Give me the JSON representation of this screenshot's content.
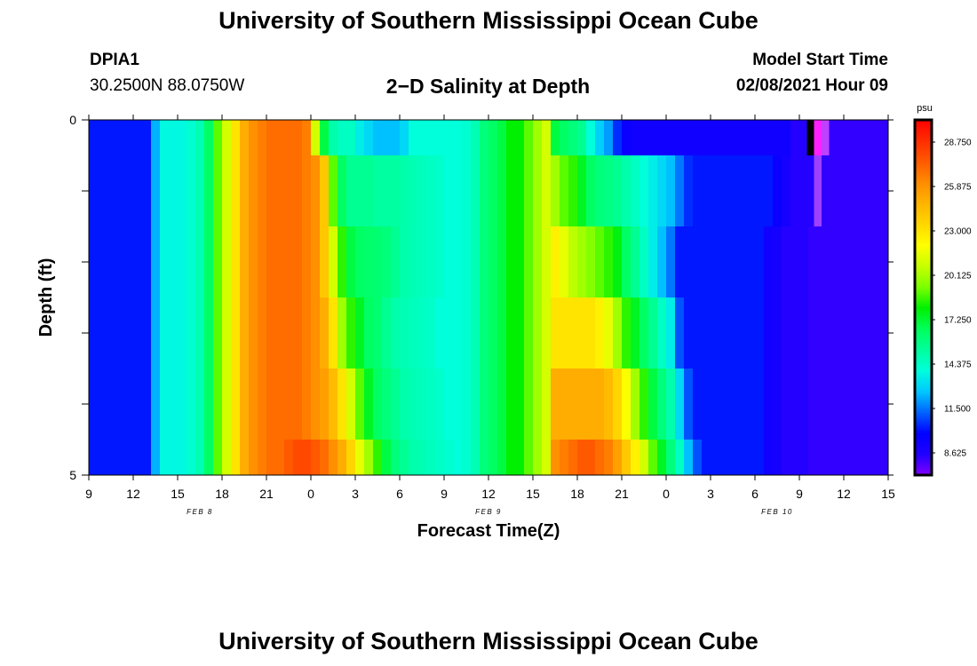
{
  "header": {
    "title": "University of Southern Mississippi Ocean Cube",
    "station_id": "DPIA1",
    "station_coords": "30.2500N 88.0750W",
    "plot_title": "2−D Salinity at Depth",
    "start_label": "Model Start Time",
    "start_value": "02/08/2021 Hour 09"
  },
  "footer": {
    "title": "University of Southern Mississippi Ocean Cube"
  },
  "chart_data": {
    "type": "heatmap",
    "title": "2−D Salinity at Depth",
    "xlabel": "Forecast Time(Z)",
    "ylabel": "Depth (ft)",
    "x_tick_labels": [
      "9",
      "12",
      "15",
      "18",
      "21",
      "0",
      "3",
      "6",
      "9",
      "12",
      "15",
      "18",
      "21",
      "0",
      "3",
      "6",
      "9",
      "12",
      "15"
    ],
    "x_range_hours": [
      0,
      54
    ],
    "x_step_hours": 1,
    "y_tick_labels": [
      "0",
      "5"
    ],
    "y_range_ft": [
      0,
      5
    ],
    "date_labels": [
      {
        "text": "FEB 8",
        "hour": 7.5
      },
      {
        "text": "FEB 9",
        "hour": 27
      },
      {
        "text": "FEB 10",
        "hour": 46.5
      }
    ],
    "colorbar": {
      "unit": "psu",
      "min": 7.1875,
      "max": 30.1875,
      "tick_values": [
        28.75,
        25.875,
        23.0,
        20.125,
        17.25,
        14.375,
        11.5,
        8.625
      ],
      "tick_labels": [
        "28.750",
        "25.875",
        "23.000",
        "20.125",
        "17.250",
        "14.375",
        "11.500",
        "8.625"
      ],
      "colors": [
        "#8000ff",
        "#2000ff",
        "#0000ff",
        "#0064ff",
        "#00c8ff",
        "#00ffdc",
        "#00ff9b",
        "#00ff5a",
        "#00f000",
        "#7dff00",
        "#c8ff00",
        "#ffff00",
        "#ffd700",
        "#ffb400",
        "#ff8c00",
        "#ff5a00",
        "#ff2d00",
        "#ff0000"
      ]
    },
    "depth_layers": [
      {
        "from_ft": 0.0,
        "to_ft": 0.5,
        "values": [
          10.2,
          10.2,
          10.2,
          10.2,
          10.2,
          10.2,
          10.2,
          12.3,
          13.8,
          13.8,
          13.8,
          14.2,
          14.8,
          16.5,
          19,
          21,
          23,
          25,
          26,
          26.5,
          27,
          27,
          27,
          27,
          26.5,
          21,
          17,
          15,
          14.5,
          14.5,
          13.5,
          13,
          12.5,
          12.5,
          12.5,
          13,
          14,
          14,
          14,
          14,
          14,
          14,
          14.2,
          14.8,
          16,
          16.5,
          17,
          18,
          18,
          19,
          20,
          21,
          17,
          16.5,
          16,
          15.5,
          14,
          12.8,
          12,
          10.5,
          9.5,
          9.2,
          9.2,
          9.2,
          9.2,
          9.2,
          9.2,
          9.2,
          9.2,
          9.2,
          9.2,
          9.2,
          9.2,
          9.2,
          9.2,
          9.2,
          9.2,
          9.2,
          9.2,
          8.5,
          8.5,
          8.5,
          8.3,
          8.3,
          8.3,
          8.3,
          8.3,
          8.3,
          8.3,
          8.3
        ]
      },
      {
        "from_ft": 0.5,
        "to_ft": 1.5,
        "values": [
          10.2,
          10.2,
          10.2,
          10.2,
          10.2,
          10.2,
          10.2,
          12.3,
          13.8,
          13.8,
          13.8,
          14.2,
          14.8,
          16.5,
          19,
          21,
          23,
          25,
          26,
          26.5,
          27,
          27,
          27,
          27,
          26.5,
          26,
          24,
          19,
          16.5,
          15.5,
          15.5,
          15.5,
          15.2,
          15.2,
          15.2,
          15,
          14.8,
          14.6,
          14.5,
          14.3,
          14,
          14,
          14.2,
          14.8,
          16,
          16.5,
          17,
          18,
          18,
          19,
          20,
          21,
          20,
          19,
          18.5,
          17.5,
          16.5,
          16,
          15.8,
          15.5,
          15,
          14.5,
          14,
          13.5,
          13,
          12.5,
          11.5,
          10.5,
          10.2,
          10.2,
          10.2,
          10.2,
          10.2,
          10.2,
          10.2,
          10.2,
          10.2,
          9.5,
          9,
          8.5,
          8.5,
          8.5,
          8.3,
          8.3,
          8.3,
          8.3,
          8.3,
          8.3,
          8.3,
          8.3
        ]
      },
      {
        "from_ft": 1.5,
        "to_ft": 2.5,
        "values": [
          10.2,
          10.2,
          10.2,
          10.2,
          10.2,
          10.2,
          10.2,
          12.3,
          13.8,
          13.8,
          13.8,
          14.2,
          14.8,
          16.5,
          19,
          21,
          23,
          25,
          26,
          26.5,
          27,
          27,
          27,
          27,
          26.5,
          26,
          24,
          21,
          18.5,
          17,
          16.5,
          16.3,
          16.2,
          16,
          15.5,
          15,
          14.8,
          14.6,
          14.5,
          14.3,
          14,
          14,
          14.2,
          14.8,
          16,
          16.5,
          17,
          18,
          18,
          19,
          20,
          21,
          22.5,
          21.5,
          20.5,
          20,
          19.5,
          19,
          18.5,
          17.8,
          16.5,
          15.5,
          14.5,
          13.5,
          12.5,
          11.5,
          10.2,
          10.2,
          10.2,
          10.2,
          10.2,
          10.2,
          10.2,
          10.2,
          10.2,
          10.2,
          9.2,
          9,
          8.5,
          8.5,
          8.5,
          8.3,
          8.3,
          8.3,
          8.3,
          8.3,
          8.3,
          8.3,
          8.3,
          8.3
        ]
      },
      {
        "from_ft": 2.5,
        "to_ft": 3.5,
        "values": [
          10.2,
          10.2,
          10.2,
          10.2,
          10.2,
          10.2,
          10.2,
          12.3,
          13.8,
          13.8,
          13.8,
          14.2,
          14.8,
          16.5,
          19,
          21,
          23,
          25,
          26,
          26.5,
          27,
          27,
          27,
          27,
          26.5,
          26,
          25,
          23,
          20,
          18.5,
          17.5,
          16.5,
          16.2,
          15.5,
          15,
          14.8,
          14.6,
          14.5,
          14.3,
          14,
          14,
          14,
          14.2,
          14.8,
          16,
          16.5,
          17,
          18,
          18,
          19,
          20,
          21,
          23,
          23,
          23,
          23,
          23,
          22.5,
          21.5,
          20,
          18.5,
          17.5,
          16.5,
          15.5,
          14.5,
          13.5,
          11,
          10.2,
          10.2,
          10.2,
          10.2,
          10.2,
          10.2,
          10.2,
          10.2,
          10.2,
          9.2,
          9,
          8.5,
          8.5,
          8.5,
          8.3,
          8.3,
          8.3,
          8.3,
          8.3,
          8.3,
          8.3,
          8.3,
          8.3
        ]
      },
      {
        "from_ft": 3.5,
        "to_ft": 4.5,
        "values": [
          10.2,
          10.2,
          10.2,
          10.2,
          10.2,
          10.2,
          10.2,
          12.3,
          13.8,
          13.8,
          13.8,
          14.2,
          14.8,
          16.5,
          19,
          21,
          23,
          25,
          26,
          26.5,
          27,
          27,
          27,
          27,
          26.5,
          26,
          25.5,
          24.5,
          23,
          21,
          19,
          17.5,
          16.5,
          16,
          15.5,
          15,
          14.8,
          14.6,
          14.5,
          14.3,
          14,
          14,
          14.2,
          14.8,
          16,
          16.5,
          17,
          18,
          18,
          19,
          20,
          21,
          25,
          25,
          25,
          25,
          25,
          25,
          24.5,
          23.5,
          22,
          20,
          18.5,
          17,
          16,
          15,
          13,
          11,
          10.2,
          10.2,
          10.2,
          10.2,
          10.2,
          10.2,
          10.2,
          10.2,
          9.2,
          9,
          8.5,
          8.5,
          8.5,
          8.3,
          8.3,
          8.3,
          8.3,
          8.3,
          8.3,
          8.3,
          8.3,
          8.3
        ]
      },
      {
        "from_ft": 4.5,
        "to_ft": 5.0,
        "values": [
          10.2,
          10.2,
          10.2,
          10.2,
          10.2,
          10.2,
          10.2,
          12.3,
          13.8,
          13.8,
          13.8,
          14.2,
          14.8,
          16.5,
          19,
          21,
          23,
          25,
          26,
          26.5,
          27,
          27,
          27.5,
          28,
          28,
          27.5,
          27,
          26,
          25,
          23.5,
          21.5,
          20,
          18.5,
          17,
          16,
          15.5,
          15,
          14.8,
          14.6,
          14.4,
          14.2,
          14,
          14.2,
          14.8,
          16,
          16.5,
          17,
          18,
          18,
          19,
          20,
          21,
          26,
          26.5,
          27,
          27.5,
          27.5,
          27,
          26.5,
          25.5,
          24,
          22.5,
          21,
          19,
          17.5,
          16,
          14.5,
          12.5,
          11,
          10.2,
          10.2,
          10.2,
          10.2,
          10.2,
          10.2,
          10.2,
          9.2,
          9,
          8.5,
          8.5,
          8.5,
          8.3,
          8.3,
          8.3,
          8.3,
          8.3,
          8.3,
          8.3,
          8.3,
          8.3
        ]
      }
    ],
    "overlays": [
      {
        "from_hour": 48.5,
        "to_hour": 49.0,
        "from_ft": 0.0,
        "to_ft": 0.5,
        "value": 0.0,
        "color": "#000000"
      },
      {
        "from_hour": 49.0,
        "to_hour": 49.5,
        "from_ft": 0.0,
        "to_ft": 0.5,
        "value": 31.0,
        "color": "#ff20ff"
      },
      {
        "from_hour": 49.5,
        "to_hour": 50.0,
        "from_ft": 0.0,
        "to_ft": 0.5,
        "value": 30.5,
        "color": "#c040ff"
      },
      {
        "from_hour": 49.0,
        "to_hour": 49.5,
        "from_ft": 0.5,
        "to_ft": 1.5,
        "value": 31.0,
        "color": "#a040ff"
      }
    ]
  }
}
